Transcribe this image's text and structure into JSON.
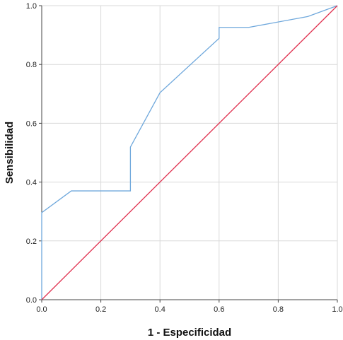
{
  "chart_data": {
    "type": "line",
    "xlabel": "1 - Especificidad",
    "ylabel": "Sensibilidad",
    "xlim": [
      0,
      1
    ],
    "ylim": [
      0,
      1
    ],
    "grid": true,
    "legend": "none",
    "x_ticks": [
      "0.0",
      "0.2",
      "0.4",
      "0.6",
      "0.8",
      "1.0"
    ],
    "y_ticks": [
      "0.0",
      "0.2",
      "0.4",
      "0.6",
      "0.8",
      "1.0"
    ],
    "series": [
      {
        "color": "#6fa8dc",
        "points": [
          [
            0.0,
            0.0
          ],
          [
            0.0,
            0.296
          ],
          [
            0.1,
            0.37
          ],
          [
            0.3,
            0.37
          ],
          [
            0.3,
            0.519
          ],
          [
            0.4,
            0.704
          ],
          [
            0.6,
            0.889
          ],
          [
            0.6,
            0.926
          ],
          [
            0.7,
            0.926
          ],
          [
            0.9,
            0.963
          ],
          [
            1.0,
            1.0
          ]
        ]
      },
      {
        "color": "#e0314f",
        "points": [
          [
            0.0,
            0.0
          ],
          [
            1.0,
            1.0
          ]
        ]
      }
    ]
  }
}
